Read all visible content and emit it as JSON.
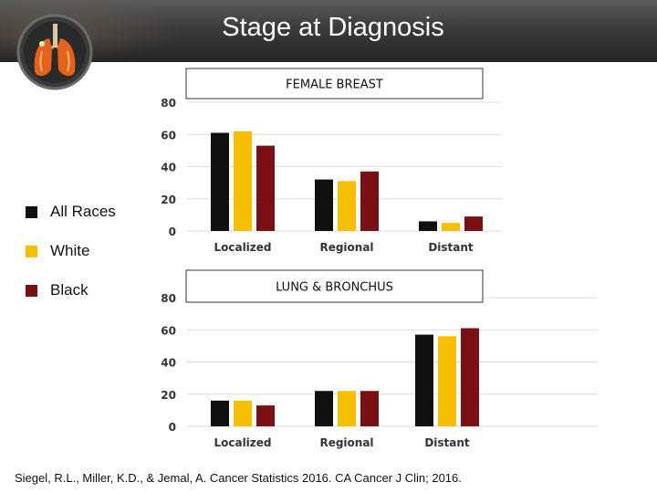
{
  "slide": {
    "title": "Stage at Diagnosis",
    "citation": "Siegel, R.L., Miller, K.D., & Jemal, A. Cancer Statistics 2016. CA Cancer J Clin; 2016."
  },
  "legend": {
    "items": [
      {
        "label": "All Races",
        "color": "#111111"
      },
      {
        "label": "White",
        "color": "#f6bf00"
      },
      {
        "label": "Black",
        "color": "#7a0f14"
      }
    ]
  },
  "chart_data": [
    {
      "type": "bar",
      "title": "FEMALE BREAST",
      "categories": [
        "Localized",
        "Regional",
        "Distant"
      ],
      "series": [
        {
          "name": "All Races",
          "values": [
            61,
            32,
            6
          ]
        },
        {
          "name": "White",
          "values": [
            62,
            31,
            5
          ]
        },
        {
          "name": "Black",
          "values": [
            53,
            37,
            9
          ]
        }
      ],
      "yticks": [
        "0",
        "20",
        "40",
        "60",
        "80"
      ],
      "ylim": [
        0,
        80
      ],
      "xlabel": "",
      "ylabel": ""
    },
    {
      "type": "bar",
      "title": "LUNG & BRONCHUS",
      "categories": [
        "Localized",
        "Regional",
        "Distant"
      ],
      "series": [
        {
          "name": "All Races",
          "values": [
            16,
            22,
            57
          ]
        },
        {
          "name": "White",
          "values": [
            16,
            22,
            56
          ]
        },
        {
          "name": "Black",
          "values": [
            13,
            22,
            61
          ]
        }
      ],
      "yticks": [
        "0",
        "20",
        "40",
        "60",
        "80"
      ],
      "ylim": [
        0,
        80
      ],
      "xlabel": "",
      "ylabel": ""
    }
  ]
}
